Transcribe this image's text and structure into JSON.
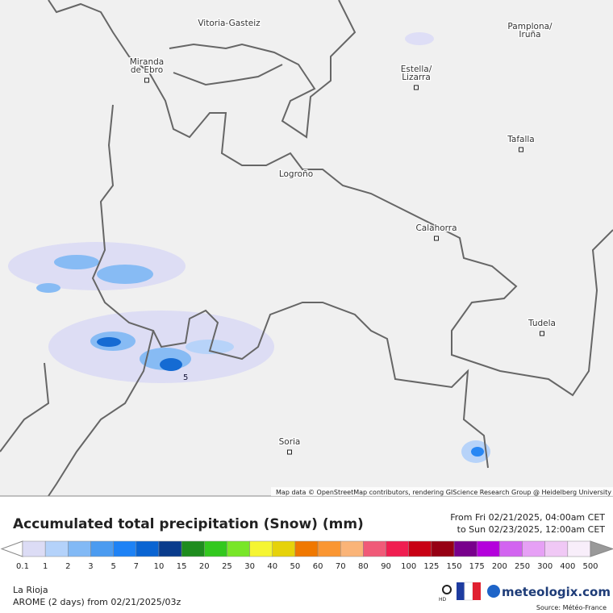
{
  "map": {
    "places": [
      {
        "lines": [
          "Vitoria-Gasteiz"
        ],
        "marker": false
      },
      {
        "lines": [
          "Pamplona/",
          "Iruña"
        ],
        "marker": false
      },
      {
        "lines": [
          "Miranda",
          "de Ebro"
        ],
        "marker": true
      },
      {
        "lines": [
          "Estella/",
          "Lizarra"
        ],
        "marker": true
      },
      {
        "lines": [
          "Tafalla"
        ],
        "marker": true
      },
      {
        "lines": [
          "Logroño"
        ],
        "marker": false
      },
      {
        "lines": [
          "Calahorra"
        ],
        "marker": true
      },
      {
        "lines": [
          "Tudela"
        ],
        "marker": true
      },
      {
        "lines": [
          "Soria"
        ],
        "marker": true
      }
    ],
    "contour_label": "5",
    "attribution": "Map data © OpenStreetMap contributors, rendering GIScience Research Group @ Heidelberg University"
  },
  "legend": {
    "title": "Accumulated total precipitation (Snow) (mm)",
    "period": [
      "From Fri 02/21/2025, 04:00am CET",
      "to Sun 02/23/2025, 12:00am CET"
    ],
    "labels": [
      "0.1",
      "1",
      "2",
      "3",
      "5",
      "7",
      "10",
      "15",
      "20",
      "25",
      "30",
      "40",
      "50",
      "60",
      "70",
      "80",
      "90",
      "100",
      "125",
      "150",
      "175",
      "200",
      "250",
      "300",
      "400",
      "500"
    ],
    "colors": [
      "#dcdcf5",
      "#b4d2fa",
      "#82b9f5",
      "#4b9bf0",
      "#1e82f5",
      "#0a64d2",
      "#0a3c8c",
      "#1e8c1e",
      "#32c81e",
      "#78e628",
      "#f5f532",
      "#e6d20a",
      "#f07800",
      "#fa9632",
      "#fab478",
      "#f05a78",
      "#f01e50",
      "#c80014",
      "#960014",
      "#78008c",
      "#b400dc",
      "#d264f0",
      "#e6a0f5",
      "#f0c8f5",
      "#f8eefa"
    ],
    "region": "La Rioja",
    "model": "AROME (2 days)  from  02/21/2025/03z",
    "brand": "meteologix.com",
    "source": "Source: Météo-France",
    "hd": "HD"
  }
}
